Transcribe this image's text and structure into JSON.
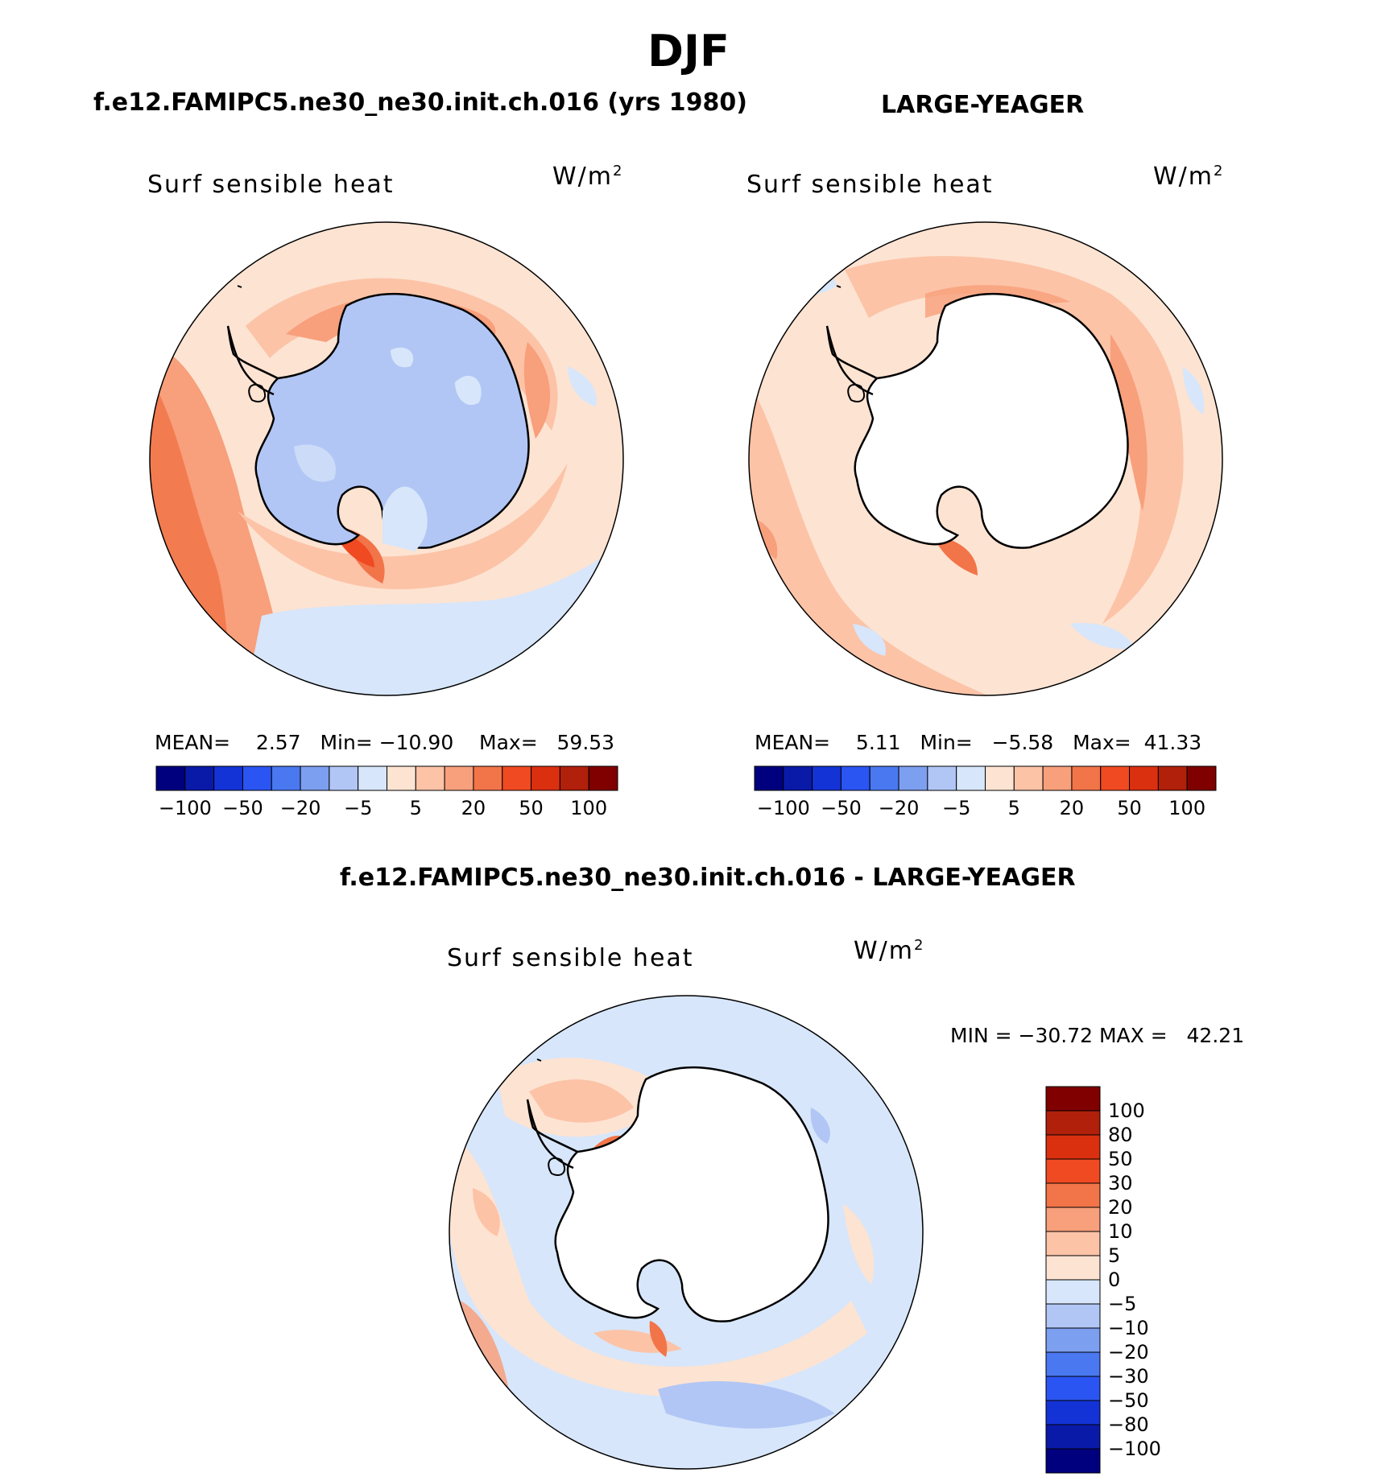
{
  "figure": {
    "title": "DJF"
  },
  "panels": [
    {
      "id": "model",
      "title": "f.e12.FAMIPC5.ne30_ne30.init.ch.016 (yrs 1980)",
      "variable": "Surf sensible heat",
      "unit": "W/m",
      "unit_exp": "2",
      "stats": {
        "mean_label": "MEAN=",
        "mean": "2.57",
        "min_label": "Min=",
        "min": "−10.90",
        "max_label": "Max=",
        "max": "59.53"
      }
    },
    {
      "id": "obs",
      "title": "LARGE-YEAGER",
      "variable": "Surf sensible heat",
      "unit": "W/m",
      "unit_exp": "2",
      "stats": {
        "mean_label": "MEAN=",
        "mean": "5.11",
        "min_label": "Min=",
        "min": "−5.58",
        "max_label": "Max=",
        "max": "41.33"
      }
    },
    {
      "id": "diff",
      "title": "f.e12.FAMIPC5.ne30_ne30.init.ch.016 - LARGE-YEAGER",
      "variable": "Surf sensible heat",
      "unit": "W/m",
      "unit_exp": "2",
      "stats": {
        "min_label": "MIN =",
        "min": "−30.72",
        "max_label": "MAX =",
        "max": "42.21"
      }
    }
  ],
  "colorbar_field": {
    "colors": [
      "#00007f",
      "#0a1aa8",
      "#1433d6",
      "#2b55f2",
      "#4a78f0",
      "#7d9ff0",
      "#b1c6f5",
      "#d7e6fa",
      "#fde3d2",
      "#fcc3a7",
      "#f89f7b",
      "#f27449",
      "#f04a22",
      "#da3010",
      "#b0200a",
      "#800000"
    ],
    "tick_labels": [
      "−100",
      "−50",
      "−20",
      "−5",
      "5",
      "20",
      "50",
      "100"
    ]
  },
  "colorbar_diff": {
    "colors": [
      "#00007f",
      "#0a1aa8",
      "#1433d6",
      "#2b55f2",
      "#4a78f0",
      "#7d9ff0",
      "#b1c6f5",
      "#d7e6fa",
      "#fde3d2",
      "#fcc3a7",
      "#f89f7b",
      "#f27449",
      "#f04a22",
      "#da3010",
      "#b0200a",
      "#800000"
    ],
    "tick_labels": [
      "100",
      "80",
      "50",
      "30",
      "20",
      "10",
      "5",
      "0",
      "−5",
      "−10",
      "−20",
      "−30",
      "−50",
      "−80",
      "−100"
    ]
  },
  "map_colors": {
    "ocean_light_pos": "#fde3d2",
    "ocean_pos": "#fcc3a7",
    "ocean_mid_pos": "#f89f7b",
    "ocean_strong_pos": "#f27449",
    "ocean_light_neg": "#d7e6fa",
    "land_neg": "#b1c6f5",
    "land_blank": "#ffffff",
    "coast": "#000000"
  }
}
